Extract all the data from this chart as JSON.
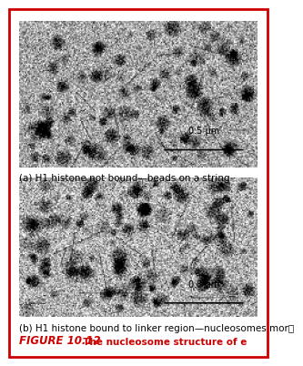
{
  "title": "FIGURE 10.12",
  "title_color": "#cc0000",
  "title_text": "  The nucleosome structure of e",
  "caption_a": "(a) H1 histone not bound—beads on a string",
  "caption_b": "(b) H1 histone bound to linker region—nucleosomes mor⁥",
  "scalebar_text": "0.5 μm",
  "bg_color": "#ffffff",
  "border_color": "#cc0000",
  "image_bg": "#b0b0b0",
  "caption_fontsize": 7.5,
  "figure_label_fontsize": 8.5,
  "scalebar_fontsize": 7.0,
  "seed_a": 42,
  "seed_b": 99,
  "noise_mean": 160,
  "noise_std": 30
}
